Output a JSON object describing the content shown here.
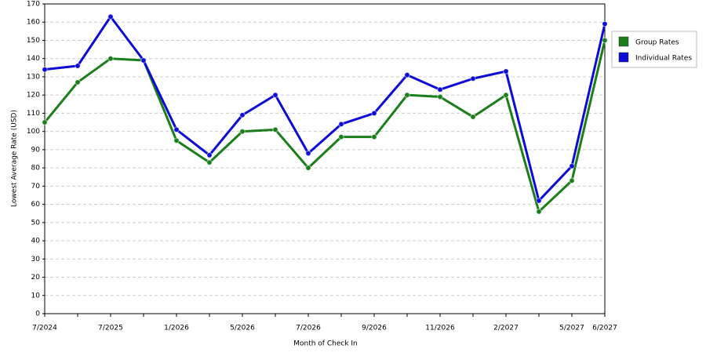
{
  "chart_data": {
    "type": "line",
    "x_label": "Month of Check In",
    "y_label": "Lowest Average Rate (USD)",
    "categories": [
      "7/2024",
      null,
      "7/2025",
      null,
      "1/2026",
      null,
      "5/2026",
      null,
      "7/2026",
      null,
      "9/2026",
      null,
      "11/2026",
      null,
      "2/2027",
      null,
      "5/2027",
      "6/2027"
    ],
    "series": [
      {
        "name": "Group Rates",
        "color": "#1a7f1a",
        "values": [
          105,
          127,
          140,
          139,
          95,
          83,
          100,
          101,
          80,
          97,
          97,
          120,
          119,
          108,
          120,
          56,
          73,
          150
        ]
      },
      {
        "name": "Individual Rates",
        "color": "#0c0cd6",
        "values": [
          134,
          136,
          163,
          139,
          101,
          87,
          109,
          120,
          88,
          104,
          110,
          131,
          123,
          129,
          133,
          62,
          81,
          159
        ]
      }
    ],
    "ylim": [
      0,
      170
    ],
    "yticks": [
      0,
      10,
      20,
      30,
      40,
      50,
      60,
      70,
      80,
      90,
      100,
      110,
      120,
      130,
      140,
      150,
      160,
      170
    ],
    "grid": true,
    "legend": "right"
  }
}
